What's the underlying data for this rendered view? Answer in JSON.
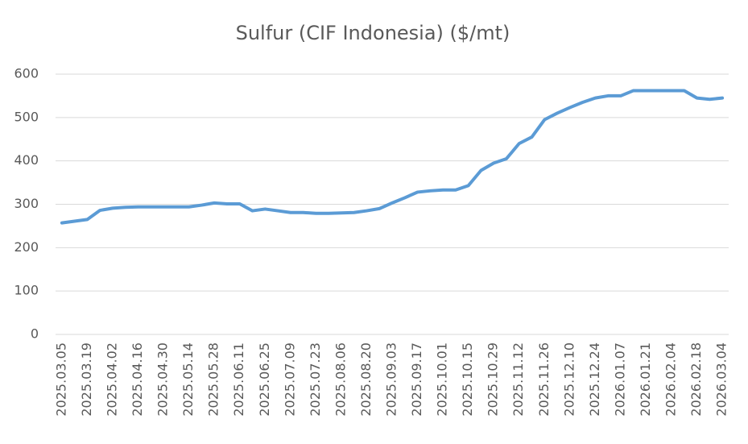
{
  "chart_data": {
    "type": "line",
    "title": "Sulfur (CIF Indonesia) ($/mt)",
    "categories": [
      "2025.03.05",
      null,
      "2025.03.19",
      null,
      "2025.04.02",
      null,
      "2025.04.16",
      null,
      "2025.04.30",
      null,
      "2025.05.14",
      null,
      "2025.05.28",
      null,
      "2025.06.11",
      null,
      "2025.06.25",
      null,
      "2025.07.09",
      null,
      "2025.07.23",
      null,
      "2025.08.06",
      null,
      "2025.08.20",
      null,
      "2025.09.03",
      null,
      "2025.09.17",
      null,
      "2025.10.01",
      null,
      "2025.10.15",
      null,
      "2025.10.29",
      null,
      "2025.11.12",
      null,
      "2025.11.26",
      null,
      "2025.12.10",
      null,
      "2025.12.24",
      null,
      "2026.01.07",
      null,
      "2026.01.21",
      null,
      "2026.02.04",
      null,
      "2026.02.18",
      null,
      "2026.03.04"
    ],
    "values": [
      257,
      261,
      265,
      286,
      291,
      293,
      294,
      294,
      294,
      294,
      294,
      298,
      303,
      301,
      301,
      285,
      289,
      285,
      281,
      281,
      279,
      279,
      280,
      281,
      285,
      290,
      303,
      315,
      328,
      331,
      333,
      333,
      343,
      378,
      395,
      405,
      440,
      455,
      495,
      510,
      523,
      535,
      545,
      550,
      550,
      562,
      562,
      562,
      562,
      562,
      545,
      542,
      545
    ],
    "color": "#5b9bd5",
    "ylim": [
      0,
      600
    ],
    "yticks": [
      0,
      100,
      200,
      300,
      400,
      500,
      600
    ],
    "grid": true
  }
}
